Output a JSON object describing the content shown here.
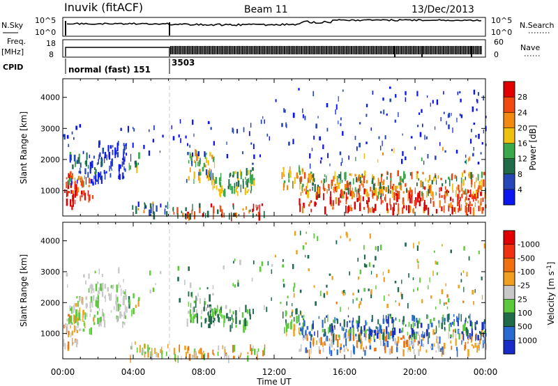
{
  "header": {
    "station": "Inuvik (fitACF)",
    "beam": "Beam 11",
    "date": "13/Dec/2013"
  },
  "summary_panels": {
    "nsky_label": "N.Sky",
    "nsky_ticks": [
      "10^5",
      "10^0"
    ],
    "nsearch_label": "N.Search",
    "freq_label_top": "Freq.",
    "freq_label_bottom": "[MHz]",
    "freq_ticks": [
      "18",
      "8"
    ],
    "nave_label": "Nave",
    "nave_ticks": [
      "60",
      "0"
    ],
    "cpid_label": "CPID",
    "cpid_entries": [
      {
        "label": "normal (fast) 151",
        "start_hour": 0,
        "end_hour": 6.0
      },
      {
        "label": "3503",
        "start_hour": 6.0,
        "end_hour": 24
      }
    ]
  },
  "xaxis": {
    "title": "Time UT",
    "ticks": [
      "00:00",
      "04:00",
      "08:00",
      "12:00",
      "16:00",
      "20:00",
      "00:00"
    ]
  },
  "chart_data": [
    {
      "type": "heatmap",
      "parameter": "Power",
      "ylabel": "Slant Range [km]",
      "xlabel": "",
      "xlim": [
        0,
        24
      ],
      "ylim": [
        180,
        4600
      ],
      "yticks": [
        1000,
        2000,
        3000,
        4000
      ],
      "colorbar": {
        "title": "Power [dB]",
        "levels": [
          "4",
          "8",
          "12",
          "16",
          "20",
          "24",
          "28"
        ],
        "colors": [
          "#0b16f0",
          "#2647b8",
          "#1f6b4a",
          "#3aa84b",
          "#f0c010",
          "#f08a10",
          "#f04a10",
          "#e00000"
        ]
      },
      "regions": [
        {
          "x0": 0.0,
          "x1": 0.8,
          "r0": 450,
          "r1": 1600,
          "c": [
            6,
            7
          ]
        },
        {
          "x0": 0.3,
          "x1": 2.2,
          "r0": 1200,
          "r1": 2200,
          "c": [
            0,
            1,
            2,
            3
          ]
        },
        {
          "x0": 0.5,
          "x1": 1.7,
          "r0": 700,
          "r1": 1500,
          "c": [
            5,
            6,
            7
          ]
        },
        {
          "x0": 2.0,
          "x1": 3.6,
          "r0": 1400,
          "r1": 2600,
          "c": [
            0,
            1
          ]
        },
        {
          "x0": 3.7,
          "x1": 4.3,
          "r0": 1700,
          "r1": 2200,
          "c": [
            1,
            2,
            3,
            4
          ]
        },
        {
          "x0": 3.8,
          "x1": 6.0,
          "r0": 250,
          "r1": 600,
          "c": [
            0,
            1,
            2,
            5
          ]
        },
        {
          "x0": 5.5,
          "x1": 6.3,
          "r0": 2500,
          "r1": 3100,
          "c": [
            0,
            1
          ]
        },
        {
          "x0": 6.2,
          "x1": 11.5,
          "r0": 200,
          "r1": 550,
          "c": [
            5,
            6,
            7,
            2
          ]
        },
        {
          "x0": 7.0,
          "x1": 8.6,
          "r0": 1300,
          "r1": 2300,
          "c": [
            1,
            3,
            4,
            5
          ]
        },
        {
          "x0": 8.2,
          "x1": 10.8,
          "r0": 900,
          "r1": 1600,
          "c": [
            2,
            3,
            4
          ]
        },
        {
          "x0": 9.6,
          "x1": 11.0,
          "r0": 1200,
          "r1": 1700,
          "c": [
            2,
            3,
            4
          ]
        },
        {
          "x0": 12.4,
          "x1": 13.6,
          "r0": 1100,
          "r1": 1800,
          "c": [
            3,
            4,
            5
          ]
        },
        {
          "x0": 13.4,
          "x1": 24.0,
          "r0": 350,
          "r1": 1100,
          "c": [
            6,
            7,
            7,
            5
          ]
        },
        {
          "x0": 13.4,
          "x1": 24.0,
          "r0": 900,
          "r1": 1600,
          "c": [
            2,
            3,
            4,
            5,
            6
          ]
        },
        {
          "x0": 15.0,
          "x1": 24.0,
          "r0": 1900,
          "r1": 2400,
          "c": [
            1,
            3,
            4,
            5
          ]
        },
        {
          "x0": 12.0,
          "x1": 24.0,
          "r0": 1800,
          "r1": 4300,
          "c": [
            0,
            1
          ]
        },
        {
          "x0": 6.5,
          "x1": 12.0,
          "r0": 1800,
          "r1": 3400,
          "c": [
            0,
            1
          ]
        },
        {
          "x0": 0.0,
          "x1": 6.0,
          "r0": 2200,
          "r1": 3100,
          "c": [
            0,
            1
          ]
        }
      ]
    },
    {
      "type": "heatmap",
      "parameter": "Velocity",
      "ylabel": "Slant Range [km]",
      "xlabel": "Time UT",
      "xlim": [
        0,
        24
      ],
      "ylim": [
        180,
        4600
      ],
      "yticks": [
        1000,
        2000,
        3000,
        4000
      ],
      "colorbar": {
        "title": "Velocity [m s^-1]",
        "levels": [
          "1000",
          "500",
          "100",
          "25",
          "-25",
          "-100",
          "-500",
          "-1000"
        ],
        "colors": [
          "#1a2cc8",
          "#2a6ad0",
          "#1f6b4a",
          "#5cc83c",
          "#c8c8c8",
          "#f0a020",
          "#f07010",
          "#f03010",
          "#e00000"
        ]
      },
      "regions": [
        {
          "x0": 0.0,
          "x1": 0.8,
          "r0": 500,
          "r1": 1600,
          "c": [
            5,
            6,
            4
          ]
        },
        {
          "x0": 0.3,
          "x1": 2.0,
          "r0": 1100,
          "r1": 2200,
          "c": [
            3,
            4,
            5
          ]
        },
        {
          "x0": 1.5,
          "x1": 3.6,
          "r0": 1300,
          "r1": 2600,
          "c": [
            4,
            4,
            3
          ]
        },
        {
          "x0": 3.7,
          "x1": 4.3,
          "r0": 1700,
          "r1": 2200,
          "c": [
            2,
            3,
            5
          ]
        },
        {
          "x0": 3.8,
          "x1": 6.0,
          "r0": 250,
          "r1": 700,
          "c": [
            4,
            5,
            3
          ]
        },
        {
          "x0": 6.2,
          "x1": 11.5,
          "r0": 200,
          "r1": 600,
          "c": [
            5,
            4,
            6,
            3
          ]
        },
        {
          "x0": 7.0,
          "x1": 8.6,
          "r0": 1300,
          "r1": 2300,
          "c": [
            2,
            3,
            4
          ]
        },
        {
          "x0": 8.2,
          "x1": 10.8,
          "r0": 1200,
          "r1": 1900,
          "c": [
            2,
            3
          ]
        },
        {
          "x0": 12.4,
          "x1": 13.6,
          "r0": 1100,
          "r1": 1800,
          "c": [
            3,
            5,
            2
          ]
        },
        {
          "x0": 13.4,
          "x1": 24.0,
          "r0": 400,
          "r1": 1100,
          "c": [
            6,
            5,
            4,
            1
          ]
        },
        {
          "x0": 13.4,
          "x1": 24.0,
          "r0": 900,
          "r1": 1600,
          "c": [
            1,
            2,
            3,
            0
          ]
        },
        {
          "x0": 15.0,
          "x1": 24.0,
          "r0": 1900,
          "r1": 2400,
          "c": [
            5,
            6,
            2
          ]
        },
        {
          "x0": 12.0,
          "x1": 24.0,
          "r0": 1800,
          "r1": 4300,
          "c": [
            5,
            3,
            2
          ]
        },
        {
          "x0": 6.5,
          "x1": 12.0,
          "r0": 1800,
          "r1": 3400,
          "c": [
            3,
            2,
            4
          ]
        },
        {
          "x0": 0.0,
          "x1": 6.0,
          "r0": 2200,
          "r1": 3100,
          "c": [
            4,
            3
          ]
        }
      ]
    }
  ]
}
